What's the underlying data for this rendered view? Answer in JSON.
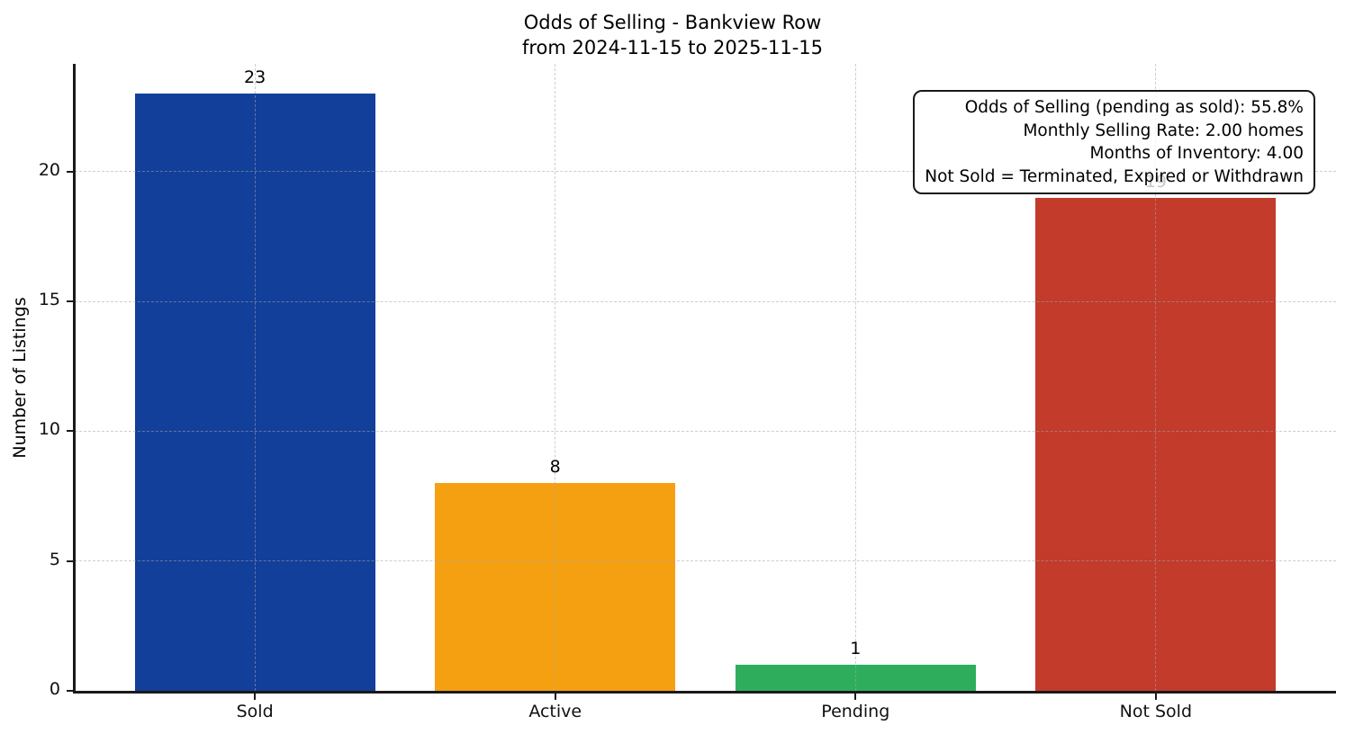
{
  "chart_data": {
    "type": "bar",
    "title": "Odds of Selling - Bankview Row",
    "subtitle": "from 2024-11-15 to 2025-11-15",
    "categories": [
      "Sold",
      "Active",
      "Pending",
      "Not Sold"
    ],
    "values": [
      23,
      8,
      1,
      19
    ],
    "bar_colors": [
      "#123F9A",
      "#F5A011",
      "#2EAE5D",
      "#C23B2B"
    ],
    "xlabel": "",
    "ylabel": "Number of Listings",
    "yticks": [
      0,
      5,
      10,
      15,
      20
    ],
    "ylim": [
      0,
      24.15
    ],
    "grid": {
      "style": "dashed",
      "axes": "both",
      "color": "#d9d9d9",
      "drawn_over_bars": true
    },
    "annotation": {
      "position": "top-right",
      "text_align": "right",
      "lines": [
        "Odds of Selling (pending as sold): 55.8%",
        "Monthly Selling Rate: 2.00 homes",
        "Months of Inventory: 4.00",
        "Not Sold = Terminated, Expired or Withdrawn"
      ]
    }
  }
}
